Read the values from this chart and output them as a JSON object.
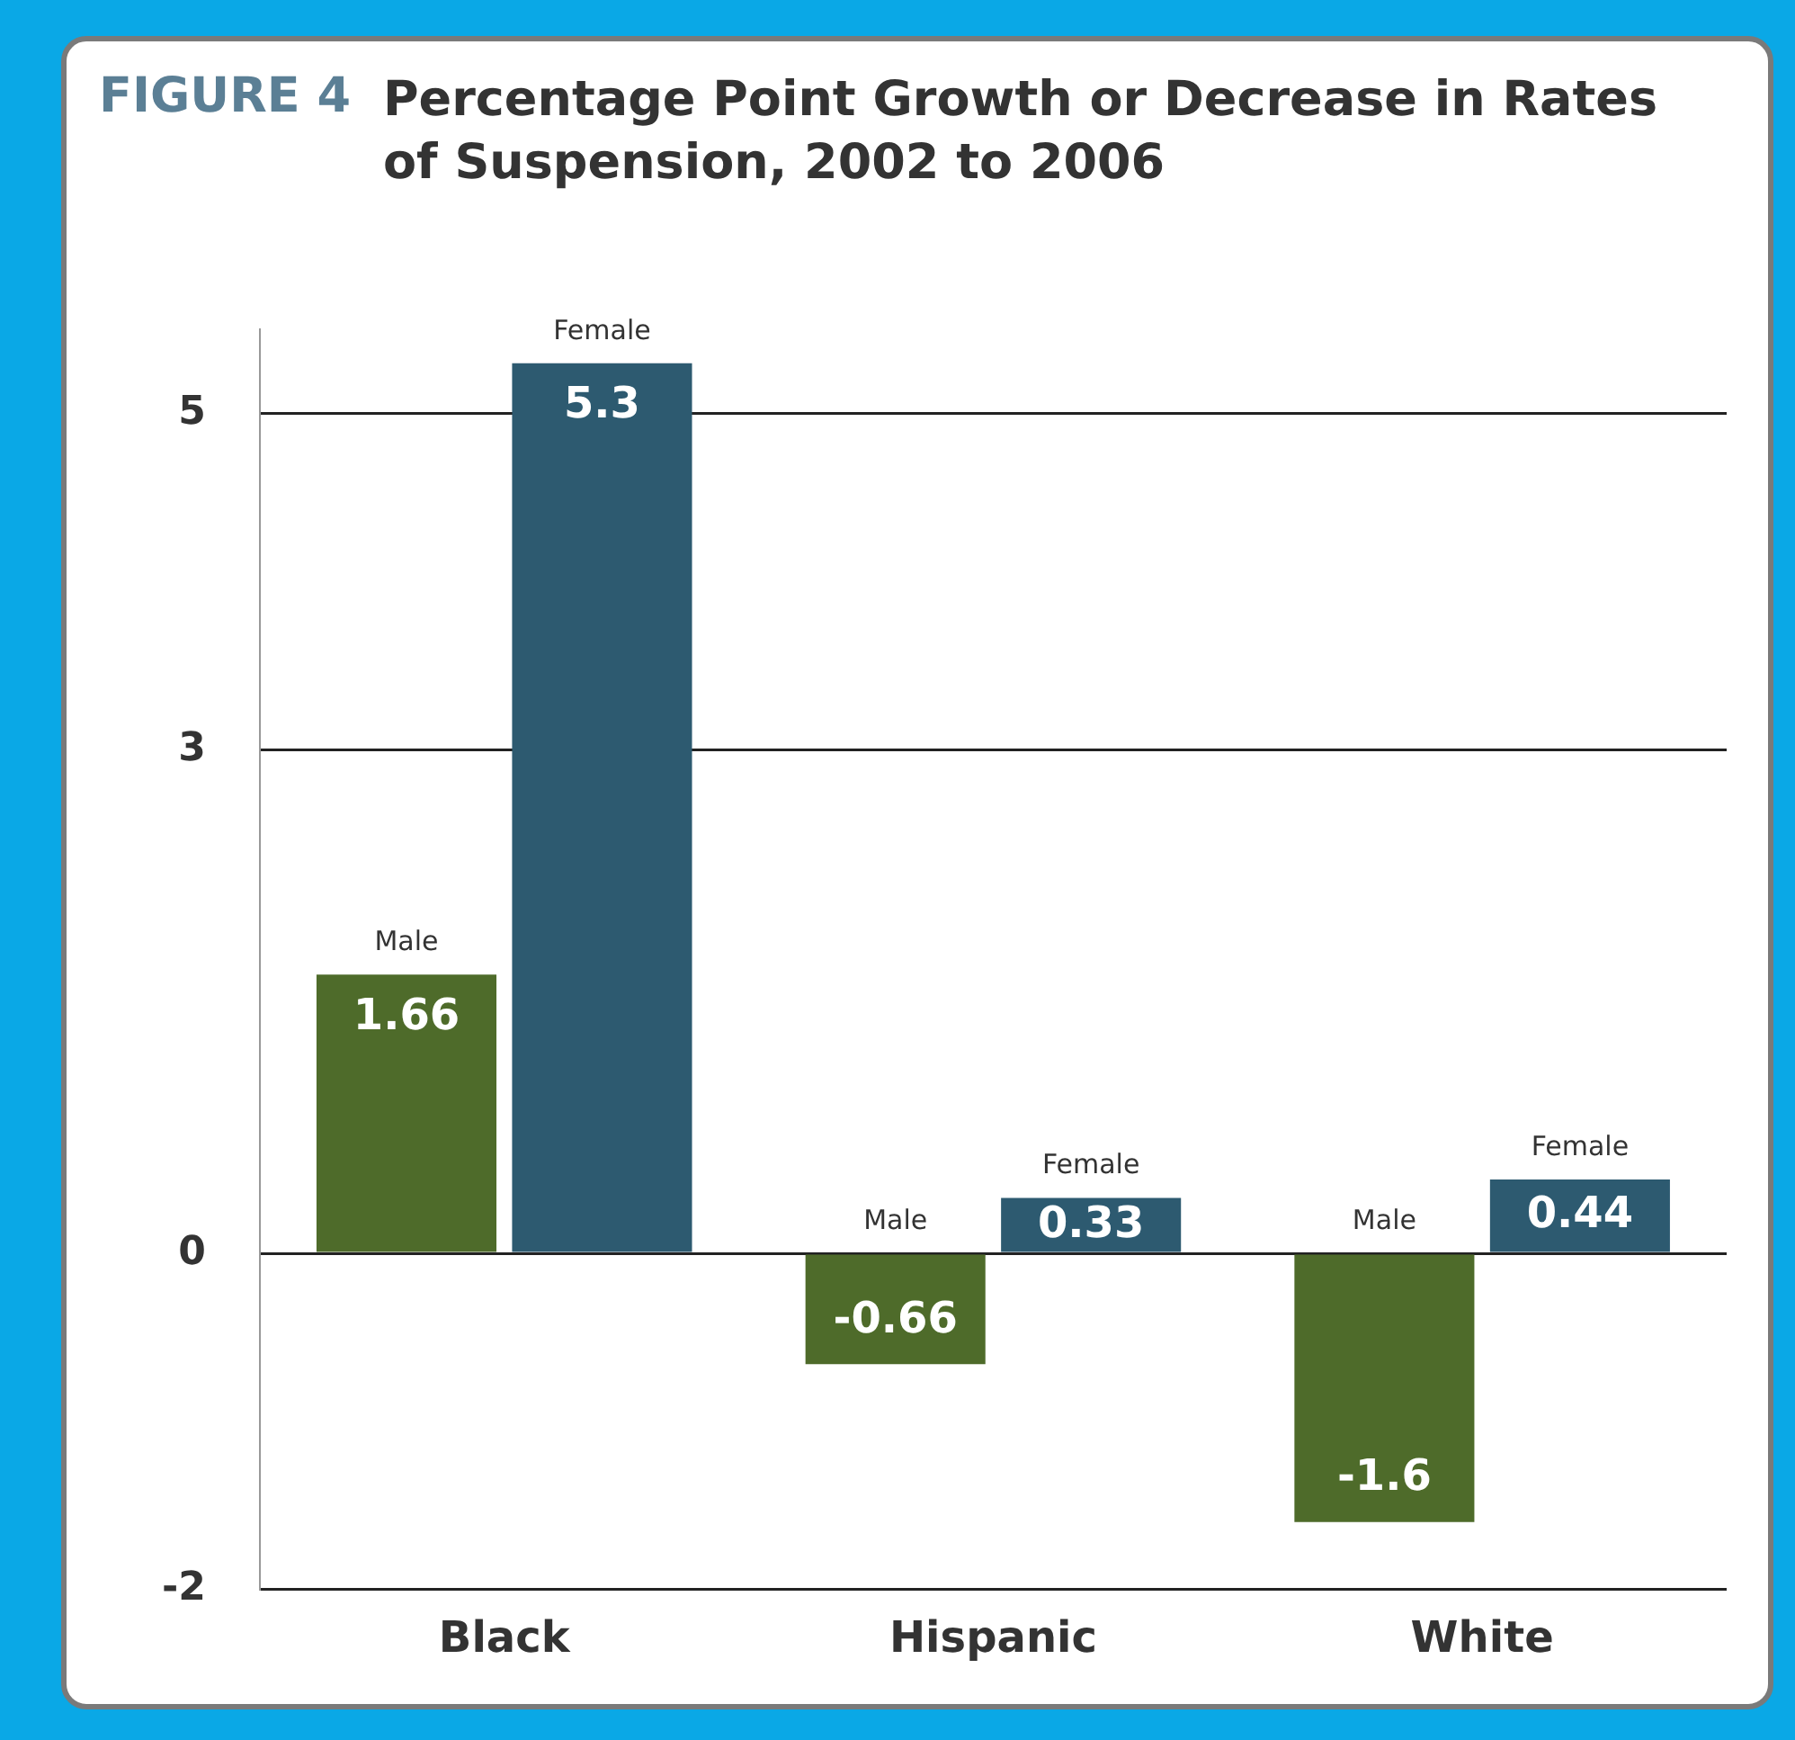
{
  "chart_data": {
    "type": "bar",
    "title": "Percentage Point Growth or Decrease in Rates of Suspension, 2002 to 2006",
    "annotations": [
      "FIGURE 4"
    ],
    "categories": [
      "Black",
      "Hispanic",
      "White"
    ],
    "series": [
      {
        "name": "Male",
        "color": "#4e6b2a",
        "values": [
          1.66,
          -0.66,
          -1.6
        ]
      },
      {
        "name": "Female",
        "color": "#2d5a70",
        "values": [
          5.3,
          0.33,
          0.44
        ]
      }
    ],
    "ylim": [
      -2,
      5.5
    ],
    "yticks": [
      5,
      3,
      0,
      -2
    ],
    "grid": "y",
    "data_labels": true
  }
}
